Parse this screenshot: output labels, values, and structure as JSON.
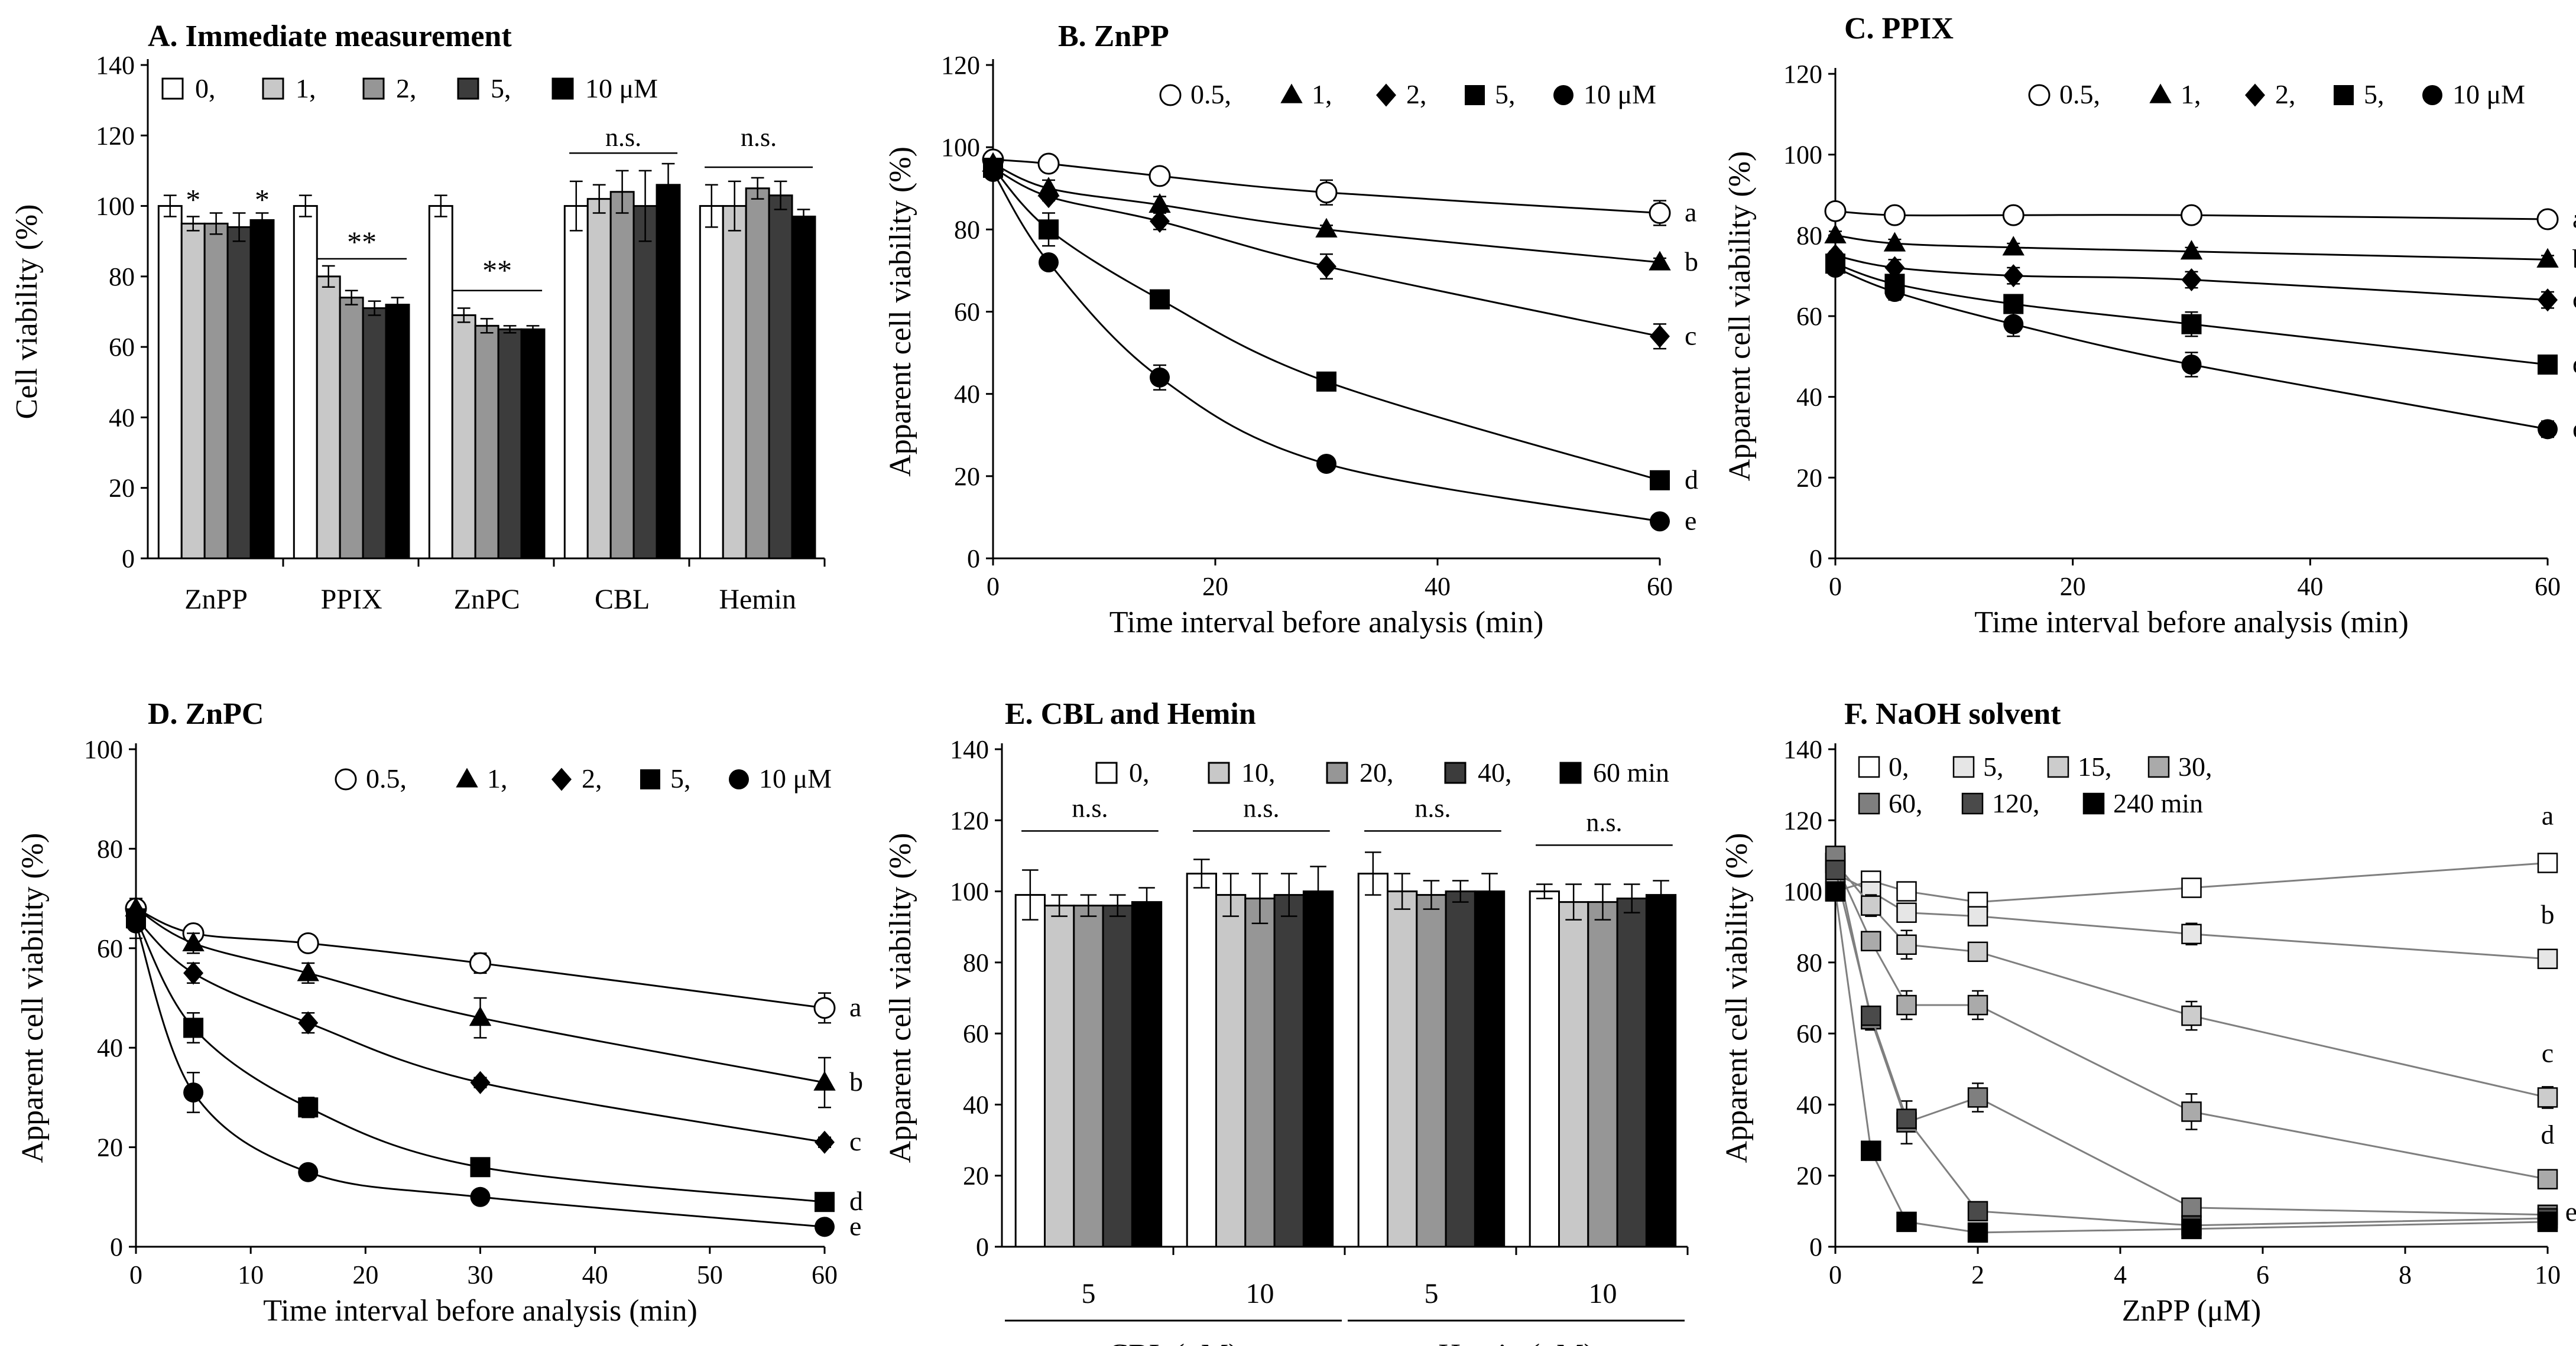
{
  "figure": {
    "panels": {
      "A": {
        "title": "A. Immediate measurement"
      },
      "B": {
        "title": "B. ZnPP"
      },
      "C": {
        "title": "C. PPIX"
      },
      "D": {
        "title": "D. ZnPC"
      },
      "E": {
        "title": "E. CBL and Hemin"
      },
      "F": {
        "title": "F. NaOH solvent"
      }
    }
  },
  "colors": {
    "c0": "#ffffff",
    "c1": "#c8c8c8",
    "c2": "#969696",
    "c3": "#3c3c3c",
    "c4": "#000000",
    "line": "#000000",
    "grayline": "#7f7f7f",
    "f0": "#ffffff",
    "f5": "#e6e6e6",
    "f15": "#cccccc",
    "f30": "#aaaaaa",
    "f60": "#7f7f7f",
    "f120": "#4a4a4a",
    "f240": "#000000"
  },
  "chart_data": [
    {
      "id": "A",
      "type": "bar",
      "title": "A. Immediate measurement",
      "xlabel": "",
      "ylabel": "Cell viability (%)",
      "ylim": [
        0,
        140
      ],
      "yticks": [
        0,
        20,
        40,
        60,
        80,
        100,
        120,
        140
      ],
      "categories": [
        "ZnPP",
        "PPIX",
        "ZnPC",
        "CBL",
        "Hemin"
      ],
      "legend": {
        "labels": [
          "0,",
          "1,",
          "2,",
          "5,",
          "10 μM"
        ],
        "position": "top-left"
      },
      "series": [
        {
          "name": "0",
          "values": [
            100,
            100,
            100,
            100,
            100
          ],
          "errors": [
            3,
            3,
            3,
            7,
            6
          ]
        },
        {
          "name": "1",
          "values": [
            95,
            80,
            69,
            102,
            100
          ],
          "errors": [
            2,
            3,
            2,
            4,
            7
          ]
        },
        {
          "name": "2",
          "values": [
            95,
            74,
            66,
            104,
            105
          ],
          "errors": [
            3,
            2,
            2,
            6,
            3
          ]
        },
        {
          "name": "5",
          "values": [
            94,
            71,
            65,
            100,
            103
          ],
          "errors": [
            4,
            2,
            1,
            10,
            4
          ]
        },
        {
          "name": "10",
          "values": [
            96,
            72,
            65,
            106,
            97
          ],
          "errors": [
            2,
            2,
            1,
            6,
            2
          ]
        }
      ],
      "annotations": [
        {
          "text": "*",
          "category": 0,
          "bar": 1,
          "y": 99
        },
        {
          "text": "*",
          "category": 0,
          "bar": 4,
          "y": 99
        },
        {
          "text": "**",
          "category": 1,
          "y": 87,
          "line_y": 85
        },
        {
          "text": "**",
          "category": 2,
          "y": 79,
          "line_y": 76
        },
        {
          "text": "n.s.",
          "category": 3,
          "y": 117,
          "line_y": 115
        },
        {
          "text": "n.s.",
          "category": 4,
          "y": 117,
          "line_y": 111
        }
      ]
    },
    {
      "id": "B",
      "type": "line",
      "title": "B. ZnPP",
      "xlabel": "Time interval before analysis (min)",
      "ylabel": "Apparent  cell viability (%)",
      "xlim": [
        0,
        60
      ],
      "xticks": [
        0,
        20,
        40,
        60
      ],
      "ylim": [
        0,
        120
      ],
      "yticks": [
        0,
        20,
        40,
        60,
        80,
        100,
        120
      ],
      "legend": {
        "labels": [
          "0.5,",
          "1,",
          "2,",
          "5,",
          "10 μM"
        ],
        "position": "top-right"
      },
      "x": [
        0,
        5,
        15,
        30,
        60
      ],
      "series": [
        {
          "name": "0.5",
          "marker": "circle-open",
          "values": [
            97,
            96,
            93,
            89,
            84
          ],
          "errors": [
            1,
            2,
            2,
            3,
            3
          ],
          "end_label": "a"
        },
        {
          "name": "1",
          "marker": "triangle",
          "values": [
            96,
            90,
            86,
            80,
            72
          ],
          "errors": [
            1,
            2,
            2,
            1,
            1
          ],
          "end_label": "b"
        },
        {
          "name": "2",
          "marker": "diamond",
          "values": [
            95,
            88,
            82,
            71,
            54
          ],
          "errors": [
            1,
            1,
            2,
            3,
            3
          ],
          "end_label": "c"
        },
        {
          "name": "5",
          "marker": "square",
          "values": [
            95,
            80,
            63,
            43,
            19
          ],
          "errors": [
            1,
            4,
            2,
            1,
            1
          ],
          "end_label": "d"
        },
        {
          "name": "10",
          "marker": "circle",
          "values": [
            94,
            72,
            44,
            23,
            9
          ],
          "errors": [
            1,
            1,
            3,
            1,
            1
          ],
          "end_label": "e"
        }
      ]
    },
    {
      "id": "C",
      "type": "line",
      "title": "C. PPIX",
      "xlabel": "Time interval before analysis (min)",
      "ylabel": "Apparent  cell viability (%)",
      "xlim": [
        0,
        60
      ],
      "xticks": [
        0,
        20,
        40,
        60
      ],
      "ylim": [
        0,
        120
      ],
      "yticks": [
        0,
        20,
        40,
        60,
        80,
        100,
        120
      ],
      "legend": {
        "labels": [
          "0.5,",
          "1,",
          "2,",
          "5,",
          "10 μM"
        ],
        "position": "top-right"
      },
      "x": [
        0,
        5,
        15,
        30,
        60
      ],
      "series": [
        {
          "name": "0.5",
          "marker": "circle-open",
          "values": [
            86,
            85,
            85,
            85,
            84
          ],
          "errors": [
            1,
            1,
            1,
            1,
            1
          ],
          "end_label": "a"
        },
        {
          "name": "1",
          "marker": "triangle",
          "values": [
            80,
            78,
            77,
            76,
            74
          ],
          "errors": [
            1,
            1,
            1,
            1,
            1
          ],
          "end_label": "b"
        },
        {
          "name": "2",
          "marker": "diamond",
          "values": [
            75,
            72,
            70,
            69,
            64
          ],
          "errors": [
            1,
            2,
            2,
            2,
            2
          ],
          "end_label": "c"
        },
        {
          "name": "5",
          "marker": "square",
          "values": [
            73,
            68,
            63,
            58,
            48
          ],
          "errors": [
            1,
            2,
            2,
            3,
            2
          ],
          "end_label": "d"
        },
        {
          "name": "10",
          "marker": "circle",
          "values": [
            72,
            66,
            58,
            48,
            32
          ],
          "errors": [
            1,
            2,
            3,
            3,
            2
          ],
          "end_label": "e"
        }
      ]
    },
    {
      "id": "D",
      "type": "line",
      "title": "D. ZnPC",
      "xlabel": "Time interval before analysis (min)",
      "ylabel": "Apparent cell viability (%)",
      "xlim": [
        0,
        60
      ],
      "xticks": [
        0,
        10,
        20,
        30,
        40,
        50,
        60
      ],
      "ylim": [
        0,
        100
      ],
      "yticks": [
        0,
        20,
        40,
        60,
        80,
        100
      ],
      "legend": {
        "labels": [
          "0.5,",
          "1,",
          "2,",
          "5,",
          "10 μM"
        ],
        "position": "top-right"
      },
      "x": [
        0,
        5,
        15,
        30,
        60
      ],
      "series": [
        {
          "name": "0.5",
          "marker": "circle-open",
          "values": [
            68,
            63,
            61,
            57,
            48
          ],
          "errors": [
            1,
            1,
            1,
            2,
            3
          ],
          "end_label": "a"
        },
        {
          "name": "1",
          "marker": "triangle",
          "values": [
            68,
            61,
            55,
            46,
            33
          ],
          "errors": [
            2,
            2,
            2,
            4,
            5
          ],
          "end_label": "b"
        },
        {
          "name": "2",
          "marker": "diamond",
          "values": [
            66,
            55,
            45,
            33,
            21
          ],
          "errors": [
            2,
            2,
            2,
            1,
            1
          ],
          "end_label": "c"
        },
        {
          "name": "5",
          "marker": "square",
          "values": [
            66,
            44,
            28,
            16,
            9
          ],
          "errors": [
            2,
            3,
            2,
            1,
            1
          ],
          "end_label": "d"
        },
        {
          "name": "10",
          "marker": "circle",
          "values": [
            65,
            31,
            15,
            10,
            4
          ],
          "errors": [
            3,
            4,
            1,
            1,
            1
          ],
          "end_label": "e"
        }
      ]
    },
    {
      "id": "E",
      "type": "bar",
      "title": "E. CBL and Hemin",
      "xlabel": "",
      "ylabel": "Apparent  cell viability (%)",
      "ylim": [
        0,
        140
      ],
      "yticks": [
        0,
        20,
        40,
        60,
        80,
        100,
        120,
        140
      ],
      "categories": [
        "5",
        "10",
        "5",
        "10"
      ],
      "groups": [
        {
          "label": "CBL (μM)",
          "categories": [
            0,
            1
          ]
        },
        {
          "label": "Hemin (μM)",
          "categories": [
            2,
            3
          ]
        }
      ],
      "legend": {
        "labels": [
          "0,",
          "10,",
          "20,",
          "40,",
          "60 min"
        ],
        "position": "top-right"
      },
      "series": [
        {
          "name": "0",
          "values": [
            99,
            105,
            105,
            100
          ],
          "errors": [
            7,
            4,
            6,
            2
          ]
        },
        {
          "name": "10",
          "values": [
            96,
            99,
            100,
            97
          ],
          "errors": [
            3,
            6,
            5,
            5
          ]
        },
        {
          "name": "20",
          "values": [
            96,
            98,
            99,
            97
          ],
          "errors": [
            3,
            7,
            4,
            5
          ]
        },
        {
          "name": "40",
          "values": [
            96,
            99,
            100,
            98
          ],
          "errors": [
            3,
            6,
            3,
            4
          ]
        },
        {
          "name": "60",
          "values": [
            97,
            100,
            100,
            99
          ],
          "errors": [
            4,
            7,
            5,
            4
          ]
        }
      ],
      "annotations": [
        {
          "text": "n.s.",
          "category": 0,
          "y": 121,
          "line_y": 117
        },
        {
          "text": "n.s.",
          "category": 1,
          "y": 121,
          "line_y": 117
        },
        {
          "text": "n.s.",
          "category": 2,
          "y": 121,
          "line_y": 117
        },
        {
          "text": "n.s.",
          "category": 3,
          "y": 117,
          "line_y": 113
        }
      ]
    },
    {
      "id": "F",
      "type": "line",
      "title": "F. NaOH solvent",
      "xlabel": "ZnPP (μM)",
      "ylabel": "Apparent  cell viability (%)",
      "xlim": [
        0,
        10
      ],
      "xticks": [
        0,
        2,
        4,
        6,
        8,
        10
      ],
      "ylim": [
        0,
        140
      ],
      "yticks": [
        0,
        20,
        40,
        60,
        80,
        100,
        120,
        140
      ],
      "legend": {
        "labels": [
          "0,",
          "5,",
          "15,",
          "30,",
          "60,",
          "120,",
          "240 min"
        ],
        "position": "top-left"
      },
      "x": [
        0,
        0.5,
        1,
        2,
        5,
        10
      ],
      "series": [
        {
          "name": "0",
          "values": [
            100,
            103,
            100,
            97,
            101,
            108
          ],
          "errors": [
            2,
            2,
            2,
            2,
            2,
            2
          ],
          "end_label": "a"
        },
        {
          "name": "5",
          "values": [
            105,
            100,
            94,
            93,
            88,
            81
          ],
          "errors": [
            2,
            2,
            2,
            2,
            3,
            2
          ],
          "end_label": "b"
        },
        {
          "name": "15",
          "values": [
            108,
            96,
            85,
            83,
            65,
            42
          ],
          "errors": [
            2,
            3,
            4,
            2,
            4,
            3
          ],
          "end_label": "c"
        },
        {
          "name": "30",
          "values": [
            108,
            86,
            68,
            68,
            38,
            19
          ],
          "errors": [
            2,
            2,
            4,
            4,
            5,
            1
          ],
          "end_label": "d"
        },
        {
          "name": "60",
          "values": [
            110,
            64,
            35,
            42,
            11,
            9
          ],
          "errors": [
            2,
            3,
            6,
            4,
            2,
            1
          ],
          "end_label": "e"
        },
        {
          "name": "120",
          "values": [
            106,
            65,
            36,
            10,
            6,
            8
          ],
          "errors": [
            2,
            2,
            2,
            1,
            1,
            1
          ],
          "end_label": ""
        },
        {
          "name": "240",
          "values": [
            100,
            27,
            7,
            4,
            5,
            7
          ],
          "errors": [
            1,
            2,
            1,
            1,
            1,
            1
          ],
          "end_label": ""
        }
      ]
    }
  ]
}
